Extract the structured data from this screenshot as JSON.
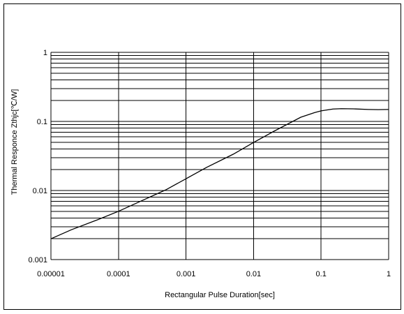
{
  "chart_data": {
    "type": "line",
    "xscale": "log",
    "yscale": "log",
    "xlim": [
      1e-05,
      1
    ],
    "ylim": [
      0.001,
      1
    ],
    "xlabel": "Rectangular Pulse Duration[sec]",
    "ylabel": "Thermal Responce Zthjc[℃/W]",
    "x_ticks": [
      "0.00001",
      "0.0001",
      "0.001",
      "0.01",
      "0.1",
      "1"
    ],
    "y_ticks": [
      "0.001",
      "0.01",
      "0.1",
      "1"
    ],
    "grid": true,
    "series": [
      {
        "x": [
          1e-05,
          2e-05,
          5e-05,
          0.0001,
          0.0002,
          0.0005,
          0.001,
          0.002,
          0.005,
          0.01,
          0.02,
          0.05,
          0.08,
          0.1,
          0.15,
          0.2,
          0.3,
          0.5,
          0.7,
          1
        ],
        "y": [
          0.002,
          0.0027,
          0.0038,
          0.005,
          0.0068,
          0.0102,
          0.0148,
          0.0215,
          0.0335,
          0.0495,
          0.072,
          0.115,
          0.134,
          0.142,
          0.151,
          0.153,
          0.152,
          0.149,
          0.148,
          0.149
        ]
      }
    ],
    "colors": {
      "line": "#000000",
      "grid": "#000000"
    }
  }
}
